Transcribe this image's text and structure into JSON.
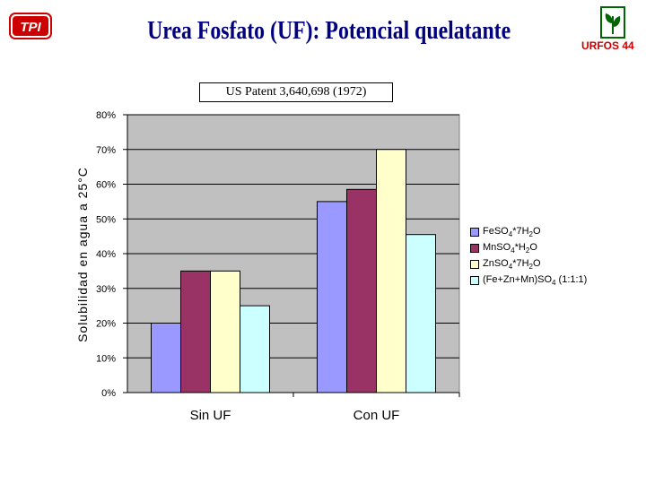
{
  "header": {
    "title": "Urea Fosfato (UF): Potencial quelatante",
    "logo_left_text": "TPI",
    "logo_right_text": "URFOS 44",
    "patent": "US Patent 3,640,698 (1972)"
  },
  "chart_data": {
    "type": "bar",
    "title": "",
    "xlabel": "",
    "ylabel": "Solubilidad en agua a 25°C",
    "categories": [
      "Sin UF",
      "Con UF"
    ],
    "yticks": [
      "0%",
      "10%",
      "20%",
      "30%",
      "40%",
      "50%",
      "60%",
      "70%",
      "80%"
    ],
    "ylim": [
      0,
      80
    ],
    "grid": true,
    "legend_position": "right",
    "series": [
      {
        "name": "FeSO4*7H2O",
        "color": "#9999ff",
        "values": [
          20,
          55
        ]
      },
      {
        "name": "MnSO4*H2O",
        "color": "#993366",
        "values": [
          35,
          58.5
        ]
      },
      {
        "name": "ZnSO4*7H2O",
        "color": "#ffffcc",
        "values": [
          35,
          70
        ]
      },
      {
        "name": "(Fe+Zn+Mn)SO4 (1:1:1)",
        "color": "#ccffff",
        "values": [
          25,
          45.5
        ]
      }
    ]
  },
  "legend": {
    "items": [
      {
        "parts": [
          [
            "FeSO",
            false
          ],
          [
            "4",
            true
          ],
          [
            "*7H",
            false
          ],
          [
            "2",
            true
          ],
          [
            "O",
            false
          ]
        ]
      },
      {
        "parts": [
          [
            "MnSO",
            false
          ],
          [
            "4",
            true
          ],
          [
            "*H",
            false
          ],
          [
            "2",
            true
          ],
          [
            "O",
            false
          ]
        ]
      },
      {
        "parts": [
          [
            "ZnSO",
            false
          ],
          [
            "4",
            true
          ],
          [
            "*7H",
            false
          ],
          [
            "2",
            true
          ],
          [
            "O",
            false
          ]
        ]
      },
      {
        "parts": [
          [
            "(Fe+Zn+Mn)SO",
            false
          ],
          [
            "4",
            true
          ],
          [
            " (1:1:1)",
            false
          ]
        ]
      }
    ]
  }
}
